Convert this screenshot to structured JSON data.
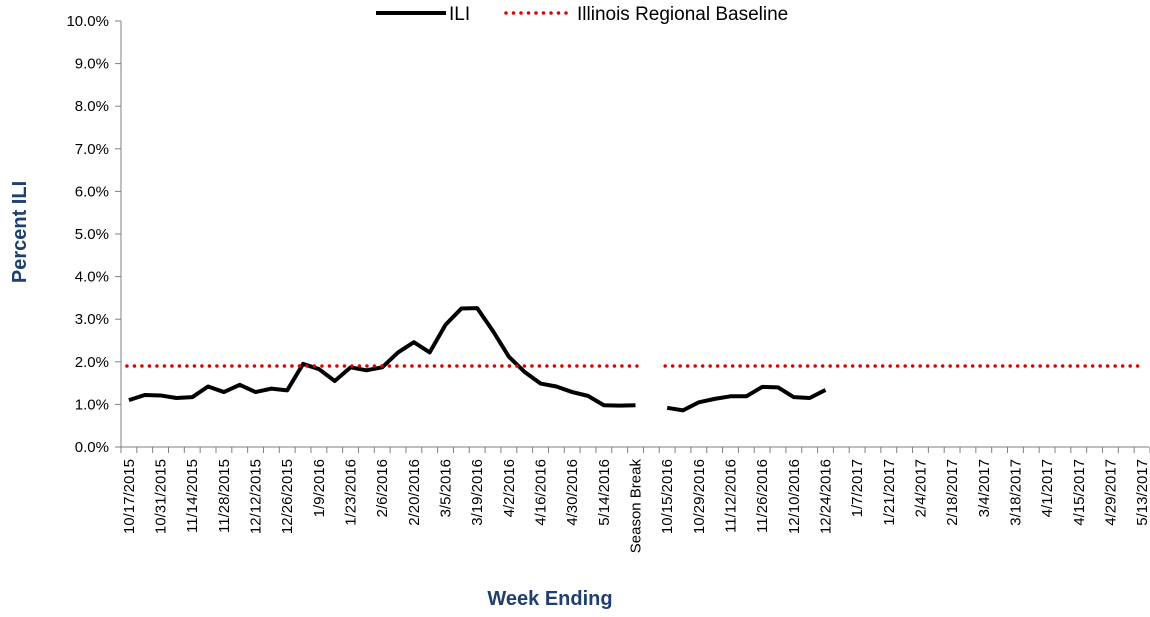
{
  "chart_data": {
    "type": "line",
    "title": "",
    "xlabel": "Week Ending",
    "ylabel": "Percent ILI",
    "ylim": [
      0,
      10
    ],
    "y_ticks": [
      "0.0%",
      "1.0%",
      "2.0%",
      "3.0%",
      "4.0%",
      "5.0%",
      "6.0%",
      "7.0%",
      "8.0%",
      "9.0%",
      "10.0%"
    ],
    "x_tick_labels": [
      "10/17/2015",
      "10/31/2015",
      "11/14/2015",
      "11/28/2015",
      "12/12/2015",
      "12/26/2015",
      "1/9/2016",
      "1/23/2016",
      "2/6/2016",
      "2/20/2016",
      "3/5/2016",
      "3/19/2016",
      "4/2/2016",
      "4/16/2016",
      "4/30/2016",
      "5/14/2016",
      "Season Break",
      "10/15/2016",
      "10/29/2016",
      "11/12/2016",
      "11/26/2016",
      "12/10/2016",
      "12/24/2016",
      "1/7/2017",
      "1/21/2017",
      "2/4/2017",
      "2/18/2017",
      "3/4/2017",
      "3/18/2017",
      "4/1/2017",
      "4/15/2017",
      "4/29/2017",
      "5/13/2017"
    ],
    "x_tick_every": 2,
    "point_count": 65,
    "grid": false,
    "legend_position": "top",
    "series": [
      {
        "name": "ILI",
        "color": "#000000",
        "style": "solid",
        "values": [
          1.1,
          1.22,
          1.21,
          1.15,
          1.17,
          1.42,
          1.29,
          1.46,
          1.29,
          1.37,
          1.33,
          1.95,
          1.83,
          1.55,
          1.87,
          1.8,
          1.87,
          2.22,
          2.46,
          2.22,
          2.87,
          3.25,
          3.26,
          2.72,
          2.12,
          1.76,
          1.49,
          1.42,
          1.29,
          1.2,
          0.98,
          0.97,
          0.98,
          null,
          0.92,
          0.86,
          1.05,
          1.13,
          1.19,
          1.19,
          1.41,
          1.4,
          1.17,
          1.15,
          1.34,
          null,
          null,
          null,
          null,
          null,
          null,
          null,
          null,
          null,
          null,
          null,
          null,
          null,
          null,
          null,
          null,
          null,
          null,
          null,
          null
        ]
      },
      {
        "name": "Illinois Regional Baseline",
        "color": "#e00000",
        "style": "dotted",
        "value": 1.9,
        "segments": [
          [
            0,
            32
          ],
          [
            34,
            64
          ]
        ]
      }
    ]
  }
}
